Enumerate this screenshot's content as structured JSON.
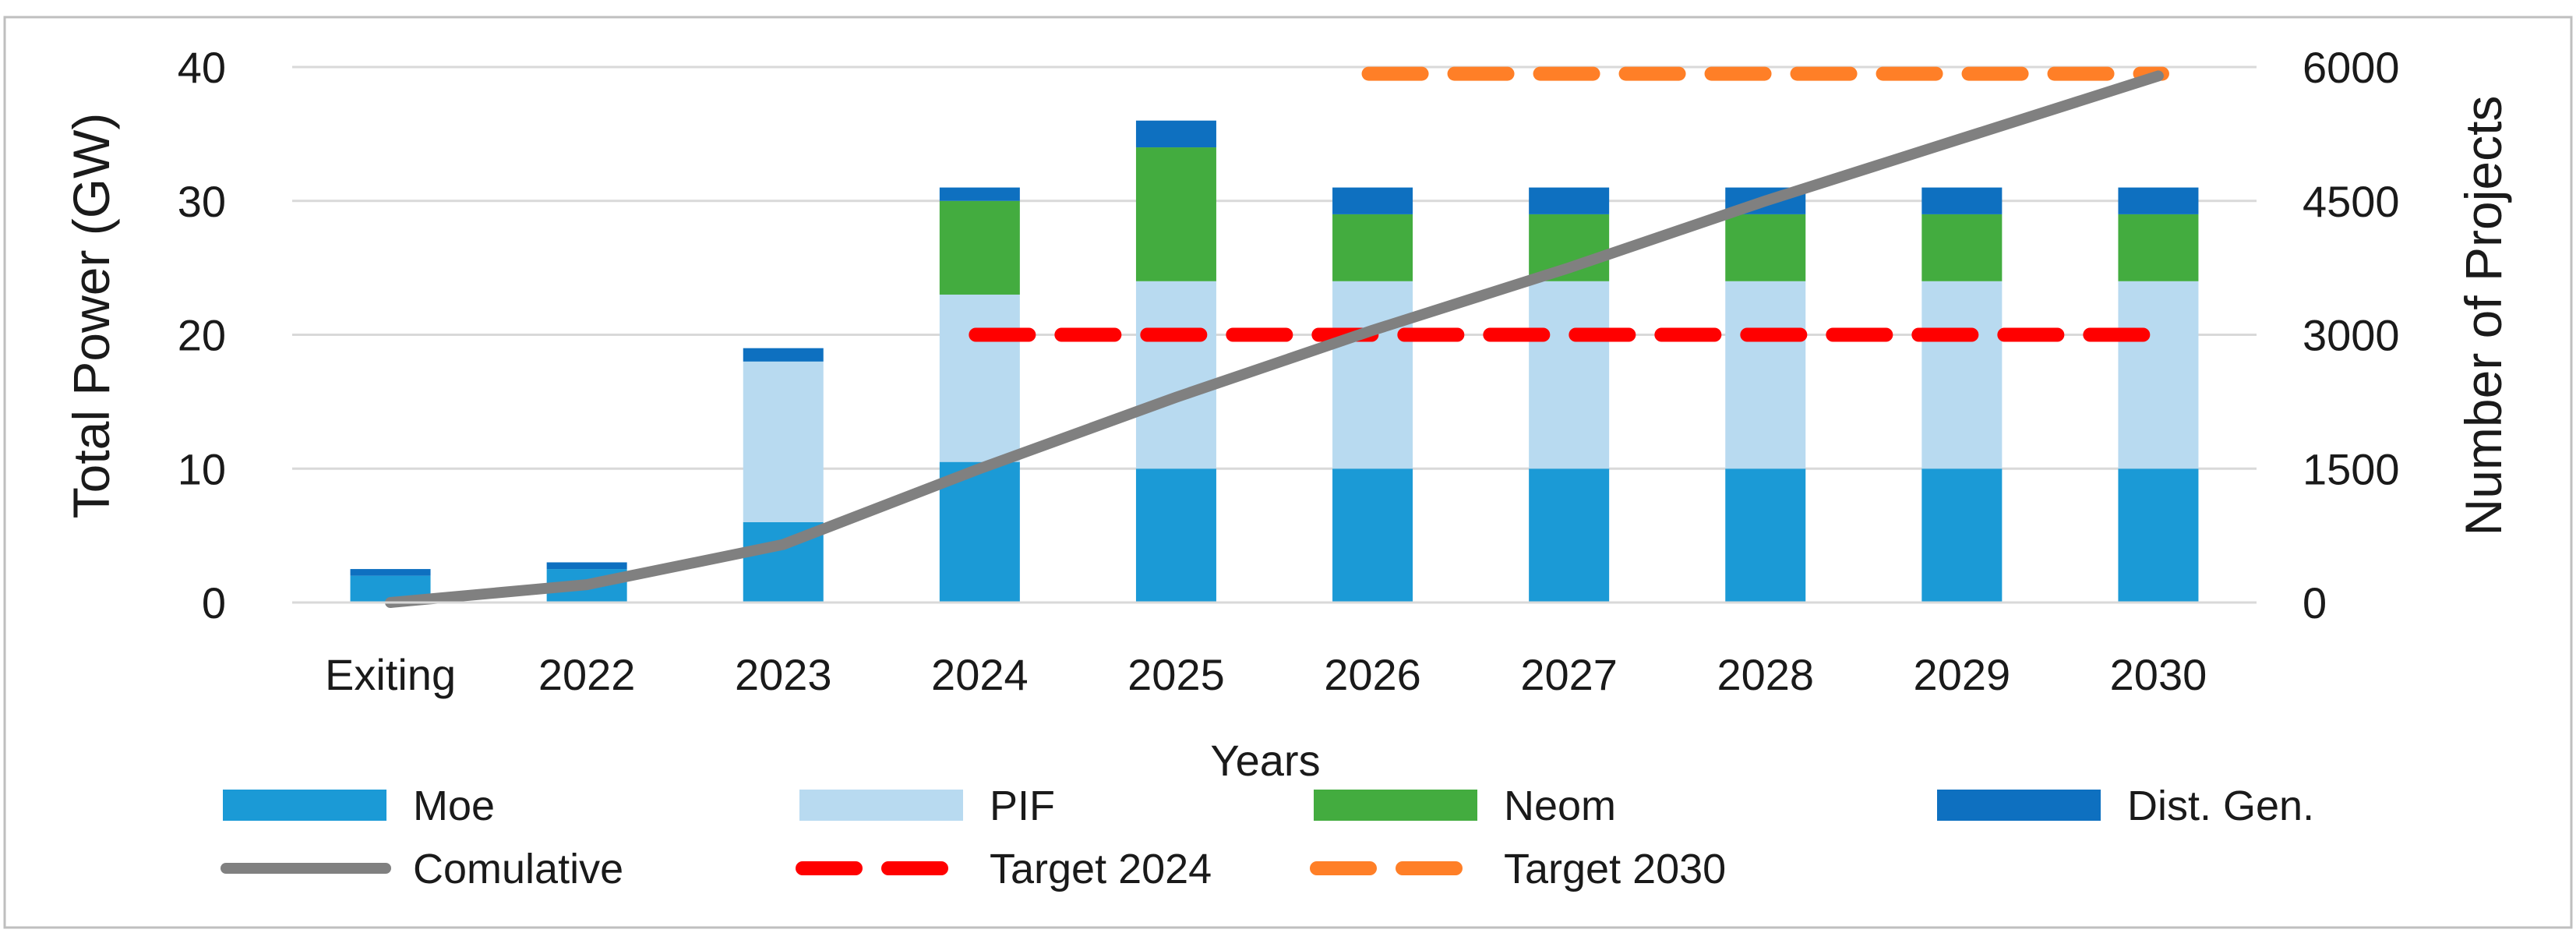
{
  "chart_data": {
    "type": "bar",
    "stacked": true,
    "categories": [
      "Exiting",
      "2022",
      "2023",
      "2024",
      "2025",
      "2026",
      "2027",
      "2028",
      "2029",
      "2030"
    ],
    "series": [
      {
        "name": "Moe",
        "kind": "bar",
        "axis": "left",
        "color": "#1b9ad6",
        "values": [
          2,
          2.5,
          6,
          10.5,
          10,
          10,
          10,
          10,
          10,
          10
        ]
      },
      {
        "name": "PIF",
        "kind": "bar",
        "axis": "left",
        "color": "#b8daf0",
        "values": [
          0,
          0,
          12,
          12.5,
          14,
          14,
          14,
          14,
          14,
          14
        ]
      },
      {
        "name": "Neom",
        "kind": "bar",
        "axis": "left",
        "color": "#43ac3f",
        "values": [
          0,
          0,
          0,
          7,
          10,
          5,
          5,
          5,
          5,
          5
        ]
      },
      {
        "name": "Dist. Gen.",
        "kind": "bar",
        "axis": "left",
        "color": "#0e70c0",
        "values": [
          0.5,
          0.5,
          1,
          1,
          2,
          2,
          2,
          2,
          2,
          2
        ]
      },
      {
        "name": "Comulative",
        "kind": "line",
        "axis": "right",
        "color": "#808080",
        "values": [
          0,
          200,
          650,
          1500,
          2300,
          3050,
          3750,
          4500,
          5200,
          5900
        ]
      },
      {
        "name": "Target 2024",
        "kind": "dashed",
        "axis": "left",
        "color": "#ff0000",
        "from": "2024",
        "to": "2030",
        "value": 20
      },
      {
        "name": "Target 2030",
        "kind": "dashed",
        "axis": "left",
        "color": "#ff7f27",
        "from": "2026",
        "to": "2030",
        "value": 39.5
      }
    ],
    "xlabel": "Years",
    "ylabel": "Total Power (GW)",
    "y2label": "Number of Projects",
    "ylim": [
      0,
      40
    ],
    "y2lim": [
      0,
      6000
    ],
    "yticks": [
      "0",
      "10",
      "20",
      "30",
      "40"
    ],
    "y2ticks": [
      "0",
      "1500",
      "3000",
      "4500",
      "6000"
    ],
    "grid": true,
    "legend_position": "bottom"
  }
}
